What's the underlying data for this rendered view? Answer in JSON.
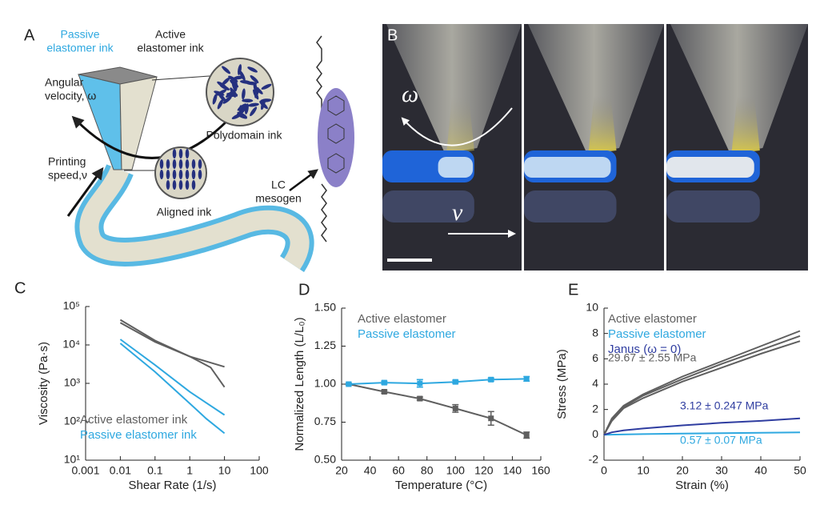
{
  "panel_a": {
    "label": "A",
    "passive_ink": [
      "Passive",
      "elastomer ink"
    ],
    "active_ink": [
      "Active",
      "elastomer ink"
    ],
    "angular_velocity": [
      "Angular",
      "velocity, ω"
    ],
    "polydomain": "Polydomain ink",
    "printing_speed": [
      "Printing",
      "speed,ν"
    ],
    "aligned": "Aligned ink",
    "mesogen": [
      "LC",
      "mesogen"
    ]
  },
  "panel_b": {
    "label": "B",
    "omega": "ω",
    "speed": "v"
  },
  "chart_data": [
    {
      "type": "line",
      "panel_label": "C",
      "x_label": "Shear Rate (1/s)",
      "y_label": "Viscosity (Pa·s)",
      "xlog": true,
      "ylog": true,
      "xlim": [
        0.001,
        100
      ],
      "ylim": [
        10,
        100000
      ],
      "xticks": [
        0.001,
        0.01,
        0.1,
        1,
        10,
        100
      ],
      "yticks": [
        {
          "value": 10,
          "label": "10¹"
        },
        {
          "value": 100,
          "label": "10²"
        },
        {
          "value": 1000,
          "label": "10³"
        },
        {
          "value": 10000,
          "label": "10⁴"
        },
        {
          "value": 100000,
          "label": "10⁵"
        }
      ],
      "legend": "lower left",
      "series": [
        {
          "name": "Active elastomer ink",
          "color": "#5f5f5f",
          "curves": [
            {
              "x": [
                0.01,
                0.1,
                1,
                10
              ],
              "values": [
                45000,
                13000,
                5000,
                2700
              ]
            },
            {
              "x": [
                0.01,
                0.1,
                1,
                4,
                10
              ],
              "values": [
                38000,
                12000,
                5000,
                2600,
                800
              ]
            }
          ]
        },
        {
          "name": "Passive elastomer ink",
          "color": "#2ea8e0",
          "curves": [
            {
              "x": [
                0.01,
                0.1,
                1,
                10
              ],
              "values": [
                14000,
                3000,
                600,
                150
              ]
            },
            {
              "x": [
                0.01,
                0.1,
                1,
                3,
                10
              ],
              "values": [
                11000,
                2000,
                300,
                120,
                50
              ]
            }
          ]
        }
      ]
    },
    {
      "type": "errorbar",
      "panel_label": "D",
      "x_label": "Temperature (°C)",
      "y_label": "Normalized Length (L/L₀)",
      "xlim": [
        20,
        160
      ],
      "ylim": [
        0.5,
        1.5
      ],
      "xticks": [
        20,
        40,
        60,
        80,
        100,
        120,
        140,
        160
      ],
      "yticks": [
        {
          "value": 0.5,
          "label": "0.50"
        },
        {
          "value": 0.75,
          "label": "0.75"
        },
        {
          "value": 1,
          "label": "1.00"
        },
        {
          "value": 1.25,
          "label": "1.25"
        },
        {
          "value": 1.5,
          "label": "1.50"
        }
      ],
      "legend": "upper left",
      "series": [
        {
          "name": "Active elastomer",
          "color": "#5f5f5f",
          "curves": [
            {
              "x": [
                25,
                50,
                75,
                100,
                125,
                150
              ],
              "values": [
                1.0,
                0.95,
                0.905,
                0.84,
                0.775,
                0.665
              ],
              "errors": [
                0.005,
                0.01,
                0.01,
                0.025,
                0.045,
                0.02
              ]
            }
          ]
        },
        {
          "name": "Passive elastomer",
          "color": "#2ea8e0",
          "curves": [
            {
              "x": [
                25,
                50,
                75,
                100,
                125,
                150
              ],
              "values": [
                1.0,
                1.01,
                1.005,
                1.015,
                1.03,
                1.035
              ],
              "errors": [
                0.005,
                0.01,
                0.025,
                0.01,
                0.01,
                0.015
              ]
            }
          ]
        }
      ]
    },
    {
      "type": "line",
      "panel_label": "E",
      "x_label": "Strain (%)",
      "y_label": "Stress (MPa)",
      "xlim": [
        0,
        50
      ],
      "ylim": [
        -2,
        10
      ],
      "xticks": [
        0,
        10,
        20,
        30,
        40,
        50
      ],
      "yticks": [
        -2,
        0,
        2,
        4,
        6,
        8,
        10
      ],
      "legend": "upper left",
      "series": [
        {
          "name": "Active elastomer",
          "color": "#5f5f5f",
          "curves": [
            {
              "x": [
                0,
                2,
                5,
                10,
                20,
                30,
                40,
                50
              ],
              "values": [
                0,
                1.3,
                2.3,
                3.2,
                4.6,
                5.8,
                7.0,
                8.2
              ]
            },
            {
              "x": [
                0,
                2,
                5,
                10,
                20,
                30,
                40,
                50
              ],
              "values": [
                0,
                1.2,
                2.2,
                3.1,
                4.4,
                5.6,
                6.7,
                7.8
              ]
            },
            {
              "x": [
                0,
                2,
                5,
                10,
                20,
                30,
                40,
                50
              ],
              "values": [
                0,
                1.1,
                2.1,
                2.9,
                4.2,
                5.3,
                6.4,
                7.4
              ]
            }
          ]
        },
        {
          "name": "Passive elastomer",
          "color": "#2ea8e0",
          "curves": [
            {
              "x": [
                0,
                10,
                20,
                30,
                40,
                50
              ],
              "values": [
                0,
                0.06,
                0.1,
                0.13,
                0.16,
                0.2
              ]
            }
          ]
        },
        {
          "name": "Janus (ω = 0)",
          "color": "#2f3da0",
          "curves": [
            {
              "x": [
                0,
                2,
                5,
                10,
                20,
                30,
                40,
                50
              ],
              "values": [
                0,
                0.2,
                0.35,
                0.5,
                0.75,
                0.95,
                1.1,
                1.3
              ]
            }
          ]
        }
      ],
      "annotations": [
        {
          "text": "29.67 ± 2.55 MPa",
          "color": "#5f5f5f"
        },
        {
          "text": "3.12 ± 0.247 MPa",
          "color": "#2f3da0"
        },
        {
          "text": "0.57 ± 0.07 MPa",
          "color": "#2ea8e0"
        }
      ]
    }
  ]
}
